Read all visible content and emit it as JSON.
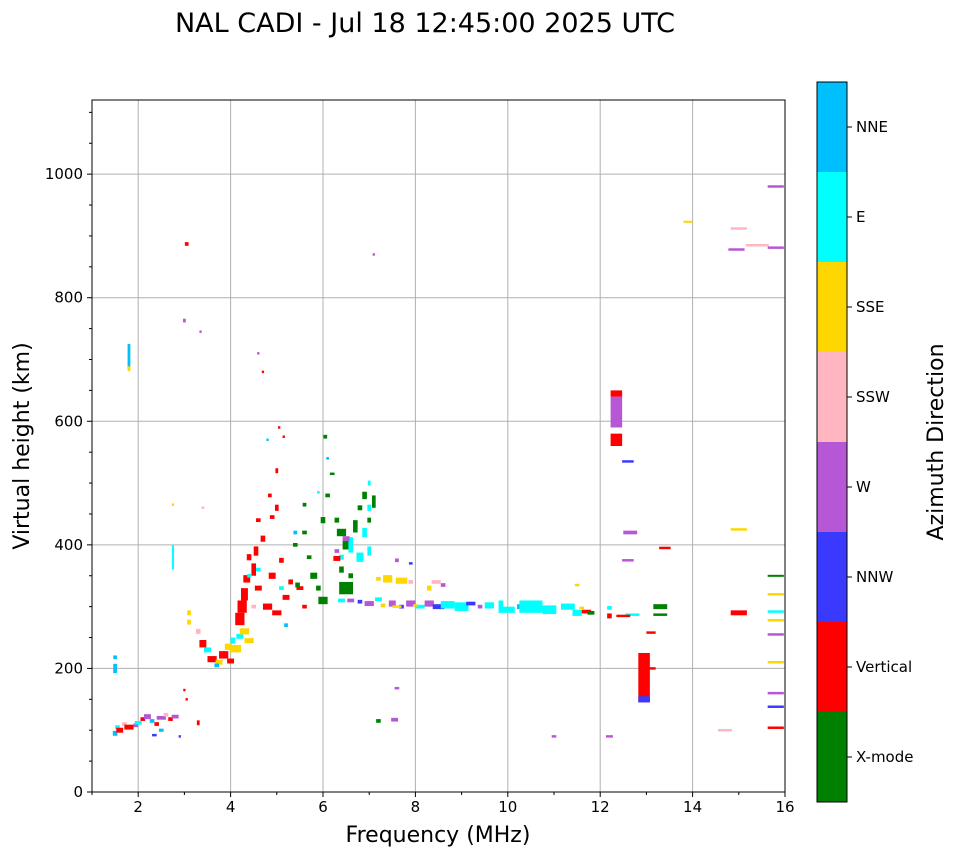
{
  "chart_data": {
    "type": "scatter",
    "title": "NAL CADI - Jul 18 12:45:00 2025 UTC",
    "xlabel": "Frequency (MHz)",
    "ylabel": "Virtual height (km)",
    "xlim": [
      1,
      16
    ],
    "ylim": [
      0,
      1120
    ],
    "xticks": [
      2,
      4,
      6,
      8,
      10,
      12,
      14,
      16
    ],
    "yticks": [
      0,
      200,
      400,
      600,
      800,
      1000
    ],
    "grid": true,
    "colorbar": {
      "label": "Azimuth Direction",
      "categories": [
        "X-mode",
        "Vertical",
        "NNW",
        "W",
        "SSW",
        "SSE",
        "E",
        "NNE"
      ],
      "colors": [
        "#008000",
        "#ff0000",
        "#3a3aff",
        "#b657d6",
        "#ffb6c1",
        "#ffd700",
        "#00ffff",
        "#00bfff"
      ]
    },
    "points_format": "[frequency_MHz, height_km, category_index, width_MHz, height_km_extent]",
    "points": [
      [
        1.5,
        95,
        7,
        0.1,
        8
      ],
      [
        1.55,
        105,
        6,
        0.1,
        6
      ],
      [
        1.6,
        100,
        1,
        0.15,
        8
      ],
      [
        1.7,
        110,
        4,
        0.1,
        6
      ],
      [
        1.8,
        105,
        1,
        0.2,
        8
      ],
      [
        1.95,
        108,
        3,
        0.1,
        6
      ],
      [
        2.0,
        112,
        6,
        0.15,
        6
      ],
      [
        2.1,
        118,
        1,
        0.1,
        6
      ],
      [
        2.2,
        122,
        3,
        0.15,
        8
      ],
      [
        2.3,
        115,
        7,
        0.1,
        6
      ],
      [
        2.4,
        110,
        1,
        0.1,
        6
      ],
      [
        2.5,
        120,
        3,
        0.2,
        6
      ],
      [
        2.6,
        125,
        4,
        0.1,
        6
      ],
      [
        2.7,
        118,
        1,
        0.1,
        6
      ],
      [
        2.8,
        122,
        3,
        0.15,
        6
      ],
      [
        2.5,
        100,
        7,
        0.1,
        5
      ],
      [
        2.35,
        92,
        2,
        0.1,
        4
      ],
      [
        1.5,
        200,
        7,
        0.08,
        15
      ],
      [
        1.5,
        218,
        7,
        0.08,
        6
      ],
      [
        3.3,
        112,
        1,
        0.06,
        8
      ],
      [
        1.8,
        705,
        7,
        0.06,
        40
      ],
      [
        1.8,
        685,
        5,
        0.06,
        8
      ],
      [
        3.05,
        887,
        1,
        0.08,
        6
      ],
      [
        3.0,
        763,
        3,
        0.06,
        6
      ],
      [
        3.35,
        745,
        3,
        0.05,
        4
      ],
      [
        3.1,
        290,
        5,
        0.08,
        8
      ],
      [
        3.1,
        275,
        5,
        0.08,
        8
      ],
      [
        3.0,
        165,
        1,
        0.05,
        4
      ],
      [
        3.05,
        150,
        1,
        0.05,
        4
      ],
      [
        2.9,
        90,
        2,
        0.05,
        4
      ],
      [
        3.3,
        260,
        4,
        0.1,
        8
      ],
      [
        3.4,
        240,
        1,
        0.15,
        12
      ],
      [
        3.5,
        230,
        6,
        0.15,
        8
      ],
      [
        3.6,
        215,
        1,
        0.2,
        10
      ],
      [
        3.75,
        210,
        5,
        0.15,
        8
      ],
      [
        3.85,
        222,
        1,
        0.2,
        12
      ],
      [
        3.95,
        235,
        5,
        0.15,
        10
      ],
      [
        4.05,
        245,
        6,
        0.1,
        10
      ],
      [
        4.1,
        232,
        5,
        0.25,
        12
      ],
      [
        4.2,
        252,
        6,
        0.15,
        8
      ],
      [
        4.3,
        260,
        5,
        0.2,
        10
      ],
      [
        4.4,
        245,
        5,
        0.2,
        8
      ],
      [
        4.0,
        212,
        1,
        0.15,
        8
      ],
      [
        3.7,
        205,
        7,
        0.1,
        6
      ],
      [
        4.2,
        280,
        1,
        0.2,
        20
      ],
      [
        4.25,
        300,
        1,
        0.2,
        20
      ],
      [
        4.3,
        320,
        1,
        0.15,
        20
      ],
      [
        4.35,
        345,
        1,
        0.15,
        12
      ],
      [
        4.5,
        360,
        1,
        0.1,
        20
      ],
      [
        4.55,
        390,
        1,
        0.1,
        15
      ],
      [
        4.7,
        410,
        1,
        0.1,
        10
      ],
      [
        4.4,
        380,
        1,
        0.1,
        10
      ],
      [
        4.6,
        330,
        1,
        0.15,
        8
      ],
      [
        4.8,
        300,
        1,
        0.2,
        10
      ],
      [
        4.9,
        350,
        1,
        0.15,
        10
      ],
      [
        5.0,
        290,
        1,
        0.2,
        8
      ],
      [
        5.2,
        315,
        1,
        0.15,
        8
      ],
      [
        5.1,
        375,
        1,
        0.1,
        8
      ],
      [
        5.0,
        460,
        1,
        0.08,
        10
      ],
      [
        5.0,
        520,
        1,
        0.06,
        8
      ],
      [
        4.9,
        445,
        1,
        0.1,
        6
      ],
      [
        4.6,
        440,
        1,
        0.1,
        6
      ],
      [
        5.3,
        340,
        1,
        0.1,
        8
      ],
      [
        5.5,
        330,
        1,
        0.15,
        6
      ],
      [
        5.6,
        300,
        1,
        0.1,
        6
      ],
      [
        4.7,
        680,
        1,
        0.05,
        4
      ],
      [
        4.6,
        710,
        3,
        0.05,
        4
      ],
      [
        5.05,
        590,
        1,
        0.05,
        4
      ],
      [
        5.15,
        575,
        1,
        0.05,
        4
      ],
      [
        4.85,
        480,
        1,
        0.08,
        6
      ],
      [
        4.4,
        350,
        6,
        0.08,
        6
      ],
      [
        4.6,
        360,
        6,
        0.1,
        6
      ],
      [
        5.1,
        330,
        6,
        0.1,
        6
      ],
      [
        4.5,
        300,
        4,
        0.1,
        6
      ],
      [
        5.2,
        270,
        7,
        0.08,
        6
      ],
      [
        4.8,
        570,
        7,
        0.05,
        4
      ],
      [
        5.4,
        400,
        0,
        0.1,
        6
      ],
      [
        5.6,
        420,
        0,
        0.1,
        6
      ],
      [
        5.7,
        380,
        0,
        0.1,
        6
      ],
      [
        5.8,
        350,
        0,
        0.15,
        10
      ],
      [
        5.9,
        330,
        0,
        0.1,
        8
      ],
      [
        6.0,
        310,
        0,
        0.2,
        12
      ],
      [
        6.1,
        480,
        0,
        0.1,
        6
      ],
      [
        6.05,
        575,
        0,
        0.08,
        6
      ],
      [
        6.2,
        515,
        0,
        0.1,
        4
      ],
      [
        6.3,
        440,
        0,
        0.1,
        8
      ],
      [
        6.4,
        420,
        0,
        0.2,
        12
      ],
      [
        6.5,
        400,
        0,
        0.15,
        15
      ],
      [
        6.4,
        360,
        0,
        0.1,
        10
      ],
      [
        6.5,
        330,
        0,
        0.3,
        20
      ],
      [
        6.6,
        350,
        0,
        0.1,
        8
      ],
      [
        6.7,
        430,
        0,
        0.1,
        20
      ],
      [
        6.8,
        460,
        0,
        0.1,
        8
      ],
      [
        6.9,
        480,
        0,
        0.1,
        12
      ],
      [
        7.0,
        440,
        0,
        0.08,
        8
      ],
      [
        7.1,
        470,
        0,
        0.08,
        20
      ],
      [
        5.6,
        465,
        0,
        0.08,
        6
      ],
      [
        5.45,
        335,
        0,
        0.1,
        8
      ],
      [
        6.0,
        440,
        0,
        0.1,
        10
      ],
      [
        7.2,
        115,
        0,
        0.1,
        6
      ],
      [
        6.4,
        380,
        6,
        0.1,
        8
      ],
      [
        6.6,
        400,
        6,
        0.1,
        25
      ],
      [
        6.8,
        380,
        6,
        0.15,
        15
      ],
      [
        6.9,
        420,
        6,
        0.1,
        15
      ],
      [
        7.0,
        460,
        6,
        0.08,
        10
      ],
      [
        7.0,
        500,
        6,
        0.06,
        8
      ],
      [
        6.1,
        540,
        7,
        0.06,
        4
      ],
      [
        5.4,
        420,
        7,
        0.08,
        6
      ],
      [
        7.0,
        390,
        6,
        0.08,
        15
      ],
      [
        5.9,
        485,
        6,
        0.06,
        4
      ],
      [
        6.5,
        410,
        3,
        0.15,
        8
      ],
      [
        6.3,
        378,
        1,
        0.15,
        8
      ],
      [
        6.3,
        390,
        3,
        0.1,
        6
      ],
      [
        6.4,
        310,
        6,
        0.15,
        6
      ],
      [
        6.6,
        310,
        3,
        0.15,
        6
      ],
      [
        6.8,
        308,
        2,
        0.1,
        6
      ],
      [
        7.0,
        305,
        3,
        0.2,
        8
      ],
      [
        7.2,
        312,
        6,
        0.15,
        6
      ],
      [
        7.3,
        302,
        5,
        0.1,
        6
      ],
      [
        7.5,
        305,
        3,
        0.15,
        10
      ],
      [
        7.7,
        300,
        2,
        0.1,
        6
      ],
      [
        7.9,
        305,
        3,
        0.2,
        10
      ],
      [
        8.1,
        300,
        6,
        0.2,
        6
      ],
      [
        8.3,
        305,
        3,
        0.2,
        10
      ],
      [
        8.5,
        300,
        2,
        0.25,
        8
      ],
      [
        8.7,
        303,
        6,
        0.3,
        12
      ],
      [
        9.0,
        300,
        6,
        0.3,
        14
      ],
      [
        9.2,
        305,
        2,
        0.2,
        6
      ],
      [
        9.4,
        300,
        3,
        0.1,
        6
      ],
      [
        9.6,
        302,
        6,
        0.2,
        10
      ],
      [
        9.85,
        300,
        6,
        0.1,
        20
      ],
      [
        10.0,
        295,
        6,
        0.3,
        10
      ],
      [
        10.3,
        300,
        7,
        0.2,
        8
      ],
      [
        10.5,
        300,
        6,
        0.5,
        20
      ],
      [
        10.9,
        295,
        6,
        0.3,
        14
      ],
      [
        11.3,
        300,
        6,
        0.3,
        10
      ],
      [
        11.5,
        290,
        6,
        0.2,
        10
      ],
      [
        11.7,
        292,
        1,
        0.2,
        6
      ],
      [
        11.8,
        290,
        0,
        0.15,
        6
      ],
      [
        12.2,
        285,
        1,
        0.1,
        8
      ],
      [
        12.2,
        298,
        6,
        0.1,
        6
      ],
      [
        11.6,
        298,
        5,
        0.1,
        4
      ],
      [
        7.6,
        300,
        5,
        0.2,
        4
      ],
      [
        8.0,
        302,
        5,
        0.1,
        4
      ],
      [
        7.4,
        345,
        5,
        0.2,
        12
      ],
      [
        7.7,
        342,
        5,
        0.25,
        10
      ],
      [
        7.9,
        340,
        4,
        0.1,
        6
      ],
      [
        8.3,
        330,
        5,
        0.1,
        8
      ],
      [
        8.45,
        340,
        4,
        0.2,
        6
      ],
      [
        8.6,
        335,
        3,
        0.1,
        6
      ],
      [
        7.6,
        375,
        3,
        0.08,
        6
      ],
      [
        7.9,
        370,
        2,
        0.08,
        4
      ],
      [
        7.2,
        345,
        5,
        0.1,
        6
      ],
      [
        11.5,
        335,
        5,
        0.1,
        4
      ],
      [
        12.35,
        615,
        3,
        0.25,
        50
      ],
      [
        12.35,
        570,
        1,
        0.25,
        20
      ],
      [
        12.35,
        645,
        1,
        0.25,
        10
      ],
      [
        12.6,
        535,
        2,
        0.25,
        4
      ],
      [
        12.65,
        420,
        3,
        0.3,
        6
      ],
      [
        12.6,
        375,
        3,
        0.25,
        4
      ],
      [
        12.95,
        185,
        1,
        0.25,
        80
      ],
      [
        12.95,
        150,
        2,
        0.25,
        10
      ],
      [
        13.1,
        200,
        1,
        0.2,
        4
      ],
      [
        13.1,
        258,
        1,
        0.2,
        4
      ],
      [
        13.4,
        395,
        1,
        0.25,
        4
      ],
      [
        13.3,
        300,
        0,
        0.3,
        8
      ],
      [
        13.3,
        287,
        0,
        0.3,
        4
      ],
      [
        12.7,
        287,
        6,
        0.3,
        4
      ],
      [
        12.5,
        285,
        1,
        0.3,
        4
      ],
      [
        12.2,
        90,
        3,
        0.15,
        4
      ],
      [
        11.0,
        90,
        3,
        0.1,
        4
      ],
      [
        7.6,
        168,
        3,
        0.1,
        4
      ],
      [
        7.55,
        117,
        3,
        0.15,
        6
      ],
      [
        13.9,
        923,
        5,
        0.2,
        3
      ],
      [
        15.0,
        912,
        4,
        0.35,
        4
      ],
      [
        15.4,
        885,
        4,
        0.5,
        4
      ],
      [
        14.95,
        878,
        3,
        0.35,
        4
      ],
      [
        15.8,
        980,
        3,
        0.35,
        4
      ],
      [
        15.8,
        881,
        3,
        0.35,
        4
      ],
      [
        15.0,
        425,
        5,
        0.35,
        4
      ],
      [
        15.0,
        290,
        1,
        0.35,
        8
      ],
      [
        15.8,
        350,
        0,
        0.35,
        3
      ],
      [
        15.8,
        292,
        6,
        0.35,
        4
      ],
      [
        15.8,
        278,
        5,
        0.35,
        4
      ],
      [
        15.8,
        255,
        3,
        0.35,
        4
      ],
      [
        15.8,
        210,
        5,
        0.35,
        4
      ],
      [
        15.8,
        160,
        3,
        0.35,
        4
      ],
      [
        15.8,
        138,
        2,
        0.35,
        4
      ],
      [
        15.8,
        104,
        1,
        0.35,
        4
      ],
      [
        15.8,
        320,
        5,
        0.35,
        4
      ],
      [
        14.7,
        100,
        4,
        0.3,
        4
      ],
      [
        7.1,
        870,
        3,
        0.05,
        4
      ],
      [
        2.75,
        465,
        5,
        0.05,
        4
      ],
      [
        3.4,
        460,
        4,
        0.06,
        4
      ],
      [
        2.75,
        380,
        6,
        0.04,
        40
      ]
    ]
  }
}
